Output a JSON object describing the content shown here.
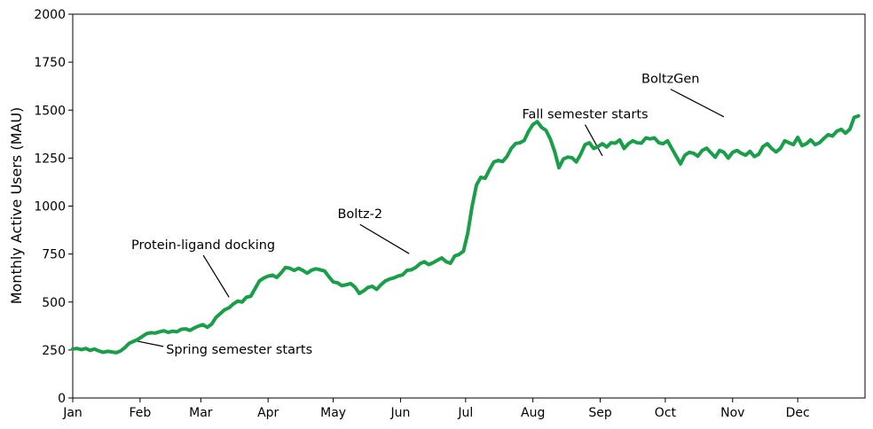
{
  "chart_data": {
    "type": "line",
    "title": "",
    "xlabel": "",
    "ylabel": "Monthly Active Users (MAU)",
    "xlim": [
      0,
      365
    ],
    "ylim": [
      0,
      2000
    ],
    "grid": false,
    "legend": "none",
    "line_color": "#1a9e4a",
    "x_ticks": [
      {
        "label": "Jan",
        "day": 0
      },
      {
        "label": "Feb",
        "day": 31
      },
      {
        "label": "Mar",
        "day": 59
      },
      {
        "label": "Apr",
        "day": 90
      },
      {
        "label": "May",
        "day": 120
      },
      {
        "label": "Jun",
        "day": 151
      },
      {
        "label": "Jul",
        "day": 181
      },
      {
        "label": "Aug",
        "day": 212
      },
      {
        "label": "Sep",
        "day": 243
      },
      {
        "label": "Oct",
        "day": 273
      },
      {
        "label": "Nov",
        "day": 304
      },
      {
        "label": "Dec",
        "day": 334
      }
    ],
    "y_ticks": [
      0,
      250,
      500,
      750,
      1000,
      1250,
      1500,
      1750,
      2000
    ],
    "series": [
      {
        "values": [
          [
            0,
            255
          ],
          [
            2,
            258
          ],
          [
            4,
            252
          ],
          [
            6,
            258
          ],
          [
            8,
            248
          ],
          [
            10,
            255
          ],
          [
            12,
            245
          ],
          [
            14,
            238
          ],
          [
            16,
            243
          ],
          [
            18,
            240
          ],
          [
            20,
            236
          ],
          [
            22,
            245
          ],
          [
            24,
            262
          ],
          [
            26,
            285
          ],
          [
            28,
            295
          ],
          [
            30,
            305
          ],
          [
            32,
            320
          ],
          [
            34,
            335
          ],
          [
            36,
            340
          ],
          [
            38,
            338
          ],
          [
            40,
            345
          ],
          [
            42,
            350
          ],
          [
            44,
            342
          ],
          [
            46,
            348
          ],
          [
            48,
            345
          ],
          [
            50,
            358
          ],
          [
            52,
            360
          ],
          [
            54,
            352
          ],
          [
            56,
            365
          ],
          [
            58,
            375
          ],
          [
            60,
            382
          ],
          [
            62,
            368
          ],
          [
            64,
            385
          ],
          [
            66,
            420
          ],
          [
            68,
            440
          ],
          [
            70,
            460
          ],
          [
            72,
            470
          ],
          [
            74,
            490
          ],
          [
            76,
            505
          ],
          [
            78,
            500
          ],
          [
            80,
            525
          ],
          [
            82,
            530
          ],
          [
            84,
            570
          ],
          [
            86,
            610
          ],
          [
            88,
            625
          ],
          [
            90,
            635
          ],
          [
            92,
            640
          ],
          [
            94,
            628
          ],
          [
            96,
            652
          ],
          [
            98,
            680
          ],
          [
            100,
            676
          ],
          [
            102,
            665
          ],
          [
            104,
            676
          ],
          [
            106,
            665
          ],
          [
            108,
            650
          ],
          [
            110,
            666
          ],
          [
            112,
            673
          ],
          [
            114,
            668
          ],
          [
            116,
            662
          ],
          [
            118,
            632
          ],
          [
            120,
            605
          ],
          [
            122,
            600
          ],
          [
            124,
            585
          ],
          [
            126,
            590
          ],
          [
            128,
            596
          ],
          [
            130,
            578
          ],
          [
            132,
            545
          ],
          [
            134,
            558
          ],
          [
            136,
            576
          ],
          [
            138,
            582
          ],
          [
            140,
            566
          ],
          [
            142,
            590
          ],
          [
            144,
            610
          ],
          [
            146,
            620
          ],
          [
            148,
            626
          ],
          [
            150,
            636
          ],
          [
            152,
            642
          ],
          [
            154,
            665
          ],
          [
            156,
            668
          ],
          [
            158,
            680
          ],
          [
            160,
            700
          ],
          [
            162,
            710
          ],
          [
            164,
            695
          ],
          [
            166,
            705
          ],
          [
            168,
            718
          ],
          [
            170,
            730
          ],
          [
            172,
            710
          ],
          [
            174,
            702
          ],
          [
            176,
            740
          ],
          [
            178,
            748
          ],
          [
            180,
            765
          ],
          [
            182,
            860
          ],
          [
            184,
            1000
          ],
          [
            186,
            1110
          ],
          [
            188,
            1150
          ],
          [
            190,
            1145
          ],
          [
            192,
            1190
          ],
          [
            194,
            1230
          ],
          [
            196,
            1238
          ],
          [
            198,
            1232
          ],
          [
            200,
            1258
          ],
          [
            202,
            1300
          ],
          [
            204,
            1326
          ],
          [
            206,
            1330
          ],
          [
            208,
            1342
          ],
          [
            210,
            1390
          ],
          [
            212,
            1425
          ],
          [
            214,
            1440
          ],
          [
            216,
            1410
          ],
          [
            218,
            1395
          ],
          [
            220,
            1350
          ],
          [
            222,
            1285
          ],
          [
            224,
            1200
          ],
          [
            226,
            1245
          ],
          [
            228,
            1255
          ],
          [
            230,
            1252
          ],
          [
            232,
            1230
          ],
          [
            234,
            1270
          ],
          [
            236,
            1320
          ],
          [
            238,
            1330
          ],
          [
            240,
            1300
          ],
          [
            242,
            1310
          ],
          [
            244,
            1325
          ],
          [
            246,
            1308
          ],
          [
            248,
            1330
          ],
          [
            250,
            1328
          ],
          [
            252,
            1345
          ],
          [
            254,
            1300
          ],
          [
            256,
            1325
          ],
          [
            258,
            1340
          ],
          [
            260,
            1330
          ],
          [
            262,
            1328
          ],
          [
            264,
            1355
          ],
          [
            266,
            1350
          ],
          [
            268,
            1355
          ],
          [
            270,
            1330
          ],
          [
            272,
            1325
          ],
          [
            274,
            1340
          ],
          [
            276,
            1300
          ],
          [
            278,
            1260
          ],
          [
            280,
            1220
          ],
          [
            282,
            1265
          ],
          [
            284,
            1280
          ],
          [
            286,
            1275
          ],
          [
            288,
            1260
          ],
          [
            290,
            1290
          ],
          [
            292,
            1302
          ],
          [
            294,
            1278
          ],
          [
            296,
            1255
          ],
          [
            298,
            1290
          ],
          [
            300,
            1280
          ],
          [
            302,
            1250
          ],
          [
            304,
            1280
          ],
          [
            306,
            1290
          ],
          [
            308,
            1275
          ],
          [
            310,
            1265
          ],
          [
            312,
            1285
          ],
          [
            314,
            1258
          ],
          [
            316,
            1270
          ],
          [
            318,
            1310
          ],
          [
            320,
            1325
          ],
          [
            322,
            1300
          ],
          [
            324,
            1282
          ],
          [
            326,
            1300
          ],
          [
            328,
            1340
          ],
          [
            330,
            1330
          ],
          [
            332,
            1320
          ],
          [
            334,
            1358
          ],
          [
            336,
            1315
          ],
          [
            338,
            1325
          ],
          [
            340,
            1345
          ],
          [
            342,
            1320
          ],
          [
            344,
            1330
          ],
          [
            346,
            1352
          ],
          [
            348,
            1372
          ],
          [
            350,
            1365
          ],
          [
            352,
            1390
          ],
          [
            354,
            1400
          ],
          [
            356,
            1380
          ],
          [
            358,
            1400
          ],
          [
            360,
            1462
          ],
          [
            362,
            1470
          ]
        ],
        "color": "#1a9e4a"
      }
    ],
    "annotations": [
      {
        "text": "Spring semester starts",
        "x": 28,
        "y": 300,
        "text_x": 43,
        "text_y": 250
      },
      {
        "text": "Protein-ligand docking",
        "x": 72,
        "y": 525,
        "text_x": 27,
        "text_y": 795
      },
      {
        "text": "Boltz-2",
        "x": 155,
        "y": 752,
        "text_x": 122,
        "text_y": 955
      },
      {
        "text": "Fall semester starts",
        "x": 244,
        "y": 1262,
        "text_x": 207,
        "text_y": 1475
      },
      {
        "text": "BoltzGen",
        "x": 300,
        "y": 1465,
        "text_x": 262,
        "text_y": 1660
      }
    ]
  }
}
